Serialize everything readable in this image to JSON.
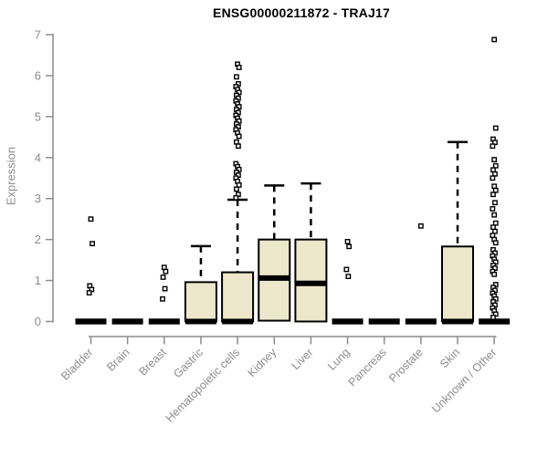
{
  "page": {
    "background": "#ffffff"
  },
  "chart_data": {
    "type": "boxplot",
    "title": "ENSG00000211872 - TRAJ17",
    "ylabel": "Expression",
    "xlabel": "",
    "ylim": [
      0,
      7
    ],
    "y_ticks": [
      0,
      1,
      2,
      3,
      4,
      5,
      6,
      7
    ],
    "grid": false,
    "legend": "none",
    "colors": {
      "box_fill": "#ede8cc",
      "box_stroke": "#000000",
      "median": "#000000",
      "whisker": "#000000",
      "outlier_fill": "#ffffff",
      "axis": "#8c8c8c",
      "tick_label": "#8c8c8c",
      "title": "#000000"
    },
    "categories": [
      "Bladder",
      "Brain",
      "Breast",
      "Gastric",
      "Hematopoietic cells",
      "Kidney",
      "Liver",
      "Lung",
      "Pancreas",
      "Prostate",
      "Skin",
      "Unknown / Other"
    ],
    "series": [
      {
        "category": "Bladder",
        "q1": 0,
        "median": 0,
        "q3": 0,
        "whisker_low": 0,
        "whisker_high": 0,
        "outliers": [
          2.5,
          1.9,
          0.87,
          0.78,
          0.7
        ]
      },
      {
        "category": "Brain",
        "q1": 0,
        "median": 0,
        "q3": 0,
        "whisker_low": 0,
        "whisker_high": 0,
        "outliers": []
      },
      {
        "category": "Breast",
        "q1": 0,
        "median": 0,
        "q3": 0,
        "whisker_low": 0,
        "whisker_high": 0,
        "outliers": [
          1.32,
          1.22,
          1.08,
          0.8,
          0.55
        ]
      },
      {
        "category": "Gastric",
        "q1": 0,
        "median": 0,
        "q3": 0.96,
        "whisker_low": 0,
        "whisker_high": 1.84,
        "outliers": []
      },
      {
        "category": "Hematopoietic cells",
        "q1": 0,
        "median": 0,
        "q3": 1.2,
        "whisker_low": 0,
        "whisker_high": 2.97,
        "outliers": [
          6.28,
          6.2,
          5.97,
          5.8,
          5.73,
          5.66,
          5.59,
          5.52,
          5.45,
          5.38,
          5.31,
          5.24,
          5.17,
          5.1,
          5.03,
          4.96,
          4.89,
          4.82,
          4.75,
          4.68,
          4.6,
          4.52,
          4.38,
          4.28,
          3.85,
          3.78,
          3.71,
          3.64,
          3.57,
          3.5,
          3.42,
          3.33,
          3.23,
          3.1,
          3.02
        ]
      },
      {
        "category": "Kidney",
        "q1": 0.02,
        "median": 1.06,
        "q3": 2.0,
        "whisker_low": 0.02,
        "whisker_high": 3.32,
        "outliers": []
      },
      {
        "category": "Liver",
        "q1": 0,
        "median": 0.93,
        "q3": 2.0,
        "whisker_low": 0,
        "whisker_high": 3.37,
        "outliers": []
      },
      {
        "category": "Lung",
        "q1": 0,
        "median": 0,
        "q3": 0,
        "whisker_low": 0,
        "whisker_high": 0,
        "outliers": [
          1.95,
          1.83,
          1.27,
          1.1
        ]
      },
      {
        "category": "Pancreas",
        "q1": 0,
        "median": 0,
        "q3": 0,
        "whisker_low": 0,
        "whisker_high": 0,
        "outliers": []
      },
      {
        "category": "Prostate",
        "q1": 0,
        "median": 0,
        "q3": 0,
        "whisker_low": 0,
        "whisker_high": 0,
        "outliers": [
          2.33
        ]
      },
      {
        "category": "Skin",
        "q1": 0,
        "median": 0,
        "q3": 1.83,
        "whisker_low": 0,
        "whisker_high": 4.38,
        "outliers": []
      },
      {
        "category": "Unknown / Other",
        "q1": 0,
        "median": 0,
        "q3": 0,
        "whisker_low": 0,
        "whisker_high": 0,
        "outliers": [
          6.88,
          4.72,
          4.45,
          4.37,
          4.28,
          3.95,
          3.8,
          3.7,
          3.6,
          3.5,
          3.3,
          3.2,
          3.1,
          2.9,
          2.75,
          2.6,
          2.4,
          2.3,
          2.2,
          2.1,
          2.0,
          1.92,
          1.75,
          1.67,
          1.6,
          1.52,
          1.45,
          1.37,
          1.3,
          1.22,
          1.15,
          0.9,
          0.83,
          0.76,
          0.69,
          0.62,
          0.55,
          0.48,
          0.4,
          0.33,
          0.26,
          0.18,
          0.1
        ]
      }
    ]
  }
}
